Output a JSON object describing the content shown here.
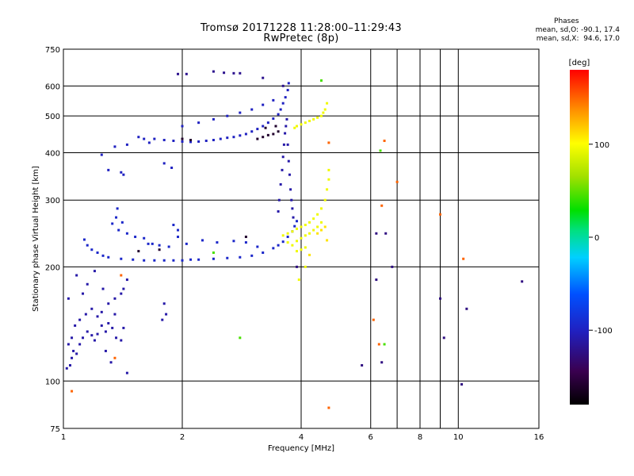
{
  "title_line1": "Tromsø 20171228 11:28:00–11:29:43",
  "title_line2": "RwPretec (8p)",
  "phases": {
    "heading": "Phases",
    "line_o": "mean, sd,O: -90.1, 17.4",
    "line_x": "mean, sd,X:  94.6, 17.0"
  },
  "chart_data": {
    "type": "scatter",
    "title": "Tromsø 20171228 11:28:00–11:29:43 RwPretec (8p)",
    "xlabel": "Frequency [MHz]",
    "ylabel": "Stationary phase Virtual Height [km]",
    "xscale": "log",
    "yscale": "log",
    "xlim": [
      1,
      16
    ],
    "ylim": [
      75,
      750
    ],
    "xticks": [
      1,
      2,
      4,
      6,
      8,
      10,
      16
    ],
    "xtick_labels": [
      "1",
      "2",
      "4",
      "6",
      "8",
      "10",
      "16"
    ],
    "xgrid": [
      2,
      4,
      6,
      7,
      8,
      9,
      10
    ],
    "yticks": [
      75,
      100,
      200,
      300,
      400,
      500,
      600,
      750
    ],
    "ytick_labels": [
      "75",
      "100",
      "200",
      "300",
      "400",
      "500",
      "600",
      "750"
    ],
    "ygrid": [
      100,
      200,
      300,
      400,
      500,
      600
    ],
    "grid": true,
    "colorbar": {
      "label": "[deg]",
      "min": -180,
      "max": 180,
      "ticks": [
        100,
        0,
        -100
      ],
      "tick_labels": [
        "100",
        "0",
        "-100"
      ]
    },
    "series": [
      {
        "phase_deg": -95,
        "points": [
          [
            1.3,
            212
          ],
          [
            1.4,
            210
          ],
          [
            1.5,
            209
          ],
          [
            1.6,
            208
          ],
          [
            1.7,
            208
          ],
          [
            1.8,
            208
          ],
          [
            1.9,
            208
          ],
          [
            2.0,
            208
          ],
          [
            2.1,
            209
          ],
          [
            2.2,
            209
          ],
          [
            2.4,
            210
          ],
          [
            2.6,
            211
          ],
          [
            2.8,
            212
          ],
          [
            3.0,
            214
          ],
          [
            3.2,
            218
          ],
          [
            3.4,
            224
          ],
          [
            3.5,
            228
          ],
          [
            3.6,
            233
          ],
          [
            3.7,
            240
          ],
          [
            3.8,
            248
          ],
          [
            3.85,
            256
          ],
          [
            3.9,
            264
          ],
          [
            1.18,
            222
          ],
          [
            1.22,
            218
          ],
          [
            1.26,
            214
          ],
          [
            1.15,
            228
          ],
          [
            1.13,
            236
          ],
          [
            1.33,
            260
          ],
          [
            1.38,
            250
          ],
          [
            1.45,
            245
          ],
          [
            1.52,
            240
          ],
          [
            1.6,
            238
          ],
          [
            1.68,
            230
          ],
          [
            1.75,
            228
          ],
          [
            1.85,
            226
          ],
          [
            1.95,
            240
          ],
          [
            2.05,
            230
          ],
          [
            2.25,
            235
          ],
          [
            2.45,
            232
          ],
          [
            2.7,
            234
          ],
          [
            2.9,
            232
          ],
          [
            3.1,
            226
          ],
          [
            1.37,
            285
          ],
          [
            1.36,
            270
          ],
          [
            1.41,
            262
          ],
          [
            1.64,
            230
          ],
          [
            1.9,
            258
          ],
          [
            1.95,
            250
          ]
        ]
      },
      {
        "phase_deg": -100,
        "points": [
          [
            1.7,
            435
          ],
          [
            1.8,
            432
          ],
          [
            1.9,
            430
          ],
          [
            2.0,
            428
          ],
          [
            2.1,
            427
          ],
          [
            2.2,
            428
          ],
          [
            2.3,
            430
          ],
          [
            2.4,
            432
          ],
          [
            2.5,
            435
          ],
          [
            2.6,
            438
          ],
          [
            2.7,
            440
          ],
          [
            2.8,
            444
          ],
          [
            2.9,
            448
          ],
          [
            3.0,
            455
          ],
          [
            3.1,
            462
          ],
          [
            3.2,
            470
          ],
          [
            3.3,
            480
          ],
          [
            3.4,
            492
          ],
          [
            3.5,
            505
          ],
          [
            3.55,
            520
          ],
          [
            3.6,
            540
          ],
          [
            3.65,
            560
          ],
          [
            3.7,
            585
          ],
          [
            3.72,
            610
          ],
          [
            2.0,
            470
          ],
          [
            2.2,
            480
          ],
          [
            2.4,
            490
          ],
          [
            2.6,
            500
          ],
          [
            2.8,
            510
          ],
          [
            3.0,
            520
          ],
          [
            3.2,
            535
          ],
          [
            3.4,
            550
          ],
          [
            1.55,
            440
          ],
          [
            1.6,
            435
          ],
          [
            1.65,
            425
          ],
          [
            1.45,
            420
          ],
          [
            1.35,
            415
          ],
          [
            1.4,
            355
          ],
          [
            1.42,
            350
          ],
          [
            1.3,
            360
          ],
          [
            1.8,
            375
          ],
          [
            1.88,
            365
          ],
          [
            1.25,
            395
          ]
        ]
      },
      {
        "phase_deg": -110,
        "points": [
          [
            3.5,
            280
          ],
          [
            3.52,
            300
          ],
          [
            3.55,
            330
          ],
          [
            3.58,
            360
          ],
          [
            3.6,
            390
          ],
          [
            3.62,
            420
          ],
          [
            3.64,
            450
          ],
          [
            3.66,
            470
          ],
          [
            3.68,
            490
          ],
          [
            3.7,
            420
          ],
          [
            3.72,
            380
          ],
          [
            3.74,
            350
          ],
          [
            3.76,
            320
          ],
          [
            3.78,
            300
          ],
          [
            3.8,
            285
          ],
          [
            3.82,
            270
          ]
        ]
      },
      {
        "phase_deg": -120,
        "points": [
          [
            2.4,
            655
          ],
          [
            2.55,
            650
          ],
          [
            2.7,
            648
          ],
          [
            2.8,
            648
          ],
          [
            2.05,
            645
          ],
          [
            1.95,
            645
          ],
          [
            3.2,
            630
          ],
          [
            3.6,
            600
          ]
        ]
      },
      {
        "phase_deg": -110,
        "points": [
          [
            1.02,
            108
          ],
          [
            1.04,
            110
          ],
          [
            1.05,
            115
          ],
          [
            1.06,
            120
          ],
          [
            1.08,
            118
          ],
          [
            1.1,
            125
          ],
          [
            1.12,
            130
          ],
          [
            1.15,
            135
          ],
          [
            1.18,
            132
          ],
          [
            1.2,
            128
          ],
          [
            1.22,
            133
          ],
          [
            1.25,
            140
          ],
          [
            1.28,
            135
          ],
          [
            1.3,
            142
          ],
          [
            1.33,
            138
          ],
          [
            1.36,
            130
          ],
          [
            1.4,
            128
          ],
          [
            1.03,
            125
          ],
          [
            1.05,
            130
          ],
          [
            1.07,
            140
          ],
          [
            1.1,
            145
          ],
          [
            1.14,
            150
          ],
          [
            1.18,
            155
          ],
          [
            1.22,
            148
          ],
          [
            1.25,
            152
          ],
          [
            1.3,
            160
          ],
          [
            1.35,
            165
          ],
          [
            1.4,
            170
          ],
          [
            1.42,
            175
          ],
          [
            1.45,
            185
          ],
          [
            1.12,
            170
          ],
          [
            1.15,
            180
          ],
          [
            1.08,
            190
          ],
          [
            1.2,
            195
          ],
          [
            1.26,
            175
          ],
          [
            1.35,
            150
          ],
          [
            1.42,
            138
          ],
          [
            1.28,
            120
          ],
          [
            1.32,
            112
          ],
          [
            1.45,
            105
          ],
          [
            1.8,
            160
          ],
          [
            1.82,
            150
          ],
          [
            1.78,
            145
          ],
          [
            1.03,
            165
          ]
        ]
      },
      {
        "phase_deg": 95,
        "points": [
          [
            3.6,
            242
          ],
          [
            3.7,
            245
          ],
          [
            3.8,
            248
          ],
          [
            3.9,
            252
          ],
          [
            4.0,
            255
          ],
          [
            4.1,
            258
          ],
          [
            4.2,
            262
          ],
          [
            4.3,
            268
          ],
          [
            4.4,
            275
          ],
          [
            4.5,
            285
          ],
          [
            4.6,
            300
          ],
          [
            4.65,
            320
          ],
          [
            4.7,
            340
          ],
          [
            4.7,
            360
          ],
          [
            3.7,
            232
          ],
          [
            3.8,
            228
          ],
          [
            3.9,
            234
          ],
          [
            4.0,
            238
          ],
          [
            4.1,
            242
          ],
          [
            4.2,
            245
          ],
          [
            4.3,
            250
          ],
          [
            4.4,
            255
          ],
          [
            4.5,
            262
          ],
          [
            3.9,
            220
          ],
          [
            4.0,
            222
          ],
          [
            4.1,
            225
          ],
          [
            3.9,
            470
          ],
          [
            4.0,
            475
          ],
          [
            4.1,
            480
          ],
          [
            4.2,
            485
          ],
          [
            4.3,
            490
          ],
          [
            4.4,
            495
          ],
          [
            4.5,
            500
          ],
          [
            4.55,
            510
          ],
          [
            4.6,
            520
          ],
          [
            3.85,
            465
          ],
          [
            4.65,
            540
          ],
          [
            4.1,
            200
          ],
          [
            3.95,
            185
          ]
        ]
      },
      {
        "phase_deg": 110,
        "points": [
          [
            4.5,
            250
          ],
          [
            4.6,
            255
          ],
          [
            4.4,
            245
          ],
          [
            4.2,
            215
          ],
          [
            4.65,
            235
          ]
        ]
      },
      {
        "phase_deg": 150,
        "points": [
          [
            4.7,
            425
          ],
          [
            6.5,
            430
          ],
          [
            7.0,
            335
          ],
          [
            6.4,
            290
          ],
          [
            9.0,
            275
          ],
          [
            10.3,
            210
          ],
          [
            4.7,
            85
          ],
          [
            1.05,
            94
          ],
          [
            1.4,
            190
          ],
          [
            1.35,
            115
          ],
          [
            6.1,
            145
          ],
          [
            6.3,
            125
          ]
        ]
      },
      {
        "phase_deg": -125,
        "points": [
          [
            6.2,
            245
          ],
          [
            6.55,
            245
          ],
          [
            5.7,
            110
          ],
          [
            6.4,
            112
          ],
          [
            9.2,
            130
          ],
          [
            10.5,
            155
          ],
          [
            10.2,
            98
          ],
          [
            14.5,
            183
          ],
          [
            6.2,
            185
          ],
          [
            9.0,
            165
          ],
          [
            6.8,
            200
          ],
          [
            3.9,
            200
          ]
        ]
      },
      {
        "phase_deg": 45,
        "points": [
          [
            2.8,
            130
          ],
          [
            6.35,
            405
          ],
          [
            4.5,
            620
          ],
          [
            6.5,
            125
          ],
          [
            2.4,
            218
          ]
        ]
      },
      {
        "phase_deg": -160,
        "points": [
          [
            3.2,
            440
          ],
          [
            3.3,
            445
          ],
          [
            3.4,
            448
          ],
          [
            3.1,
            435
          ],
          [
            3.5,
            455
          ],
          [
            2.0,
            435
          ],
          [
            2.1,
            432
          ],
          [
            3.25,
            465
          ],
          [
            3.45,
            470
          ],
          [
            2.9,
            240
          ],
          [
            1.55,
            220
          ],
          [
            1.75,
            222
          ]
        ]
      }
    ]
  }
}
